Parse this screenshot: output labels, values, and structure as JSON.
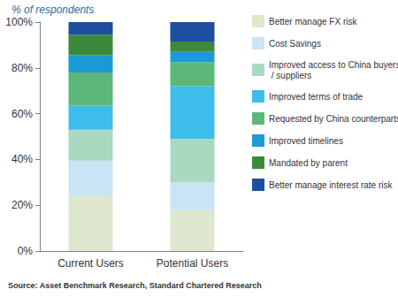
{
  "chart_data": {
    "type": "bar",
    "ylabel": "% of respondents",
    "annotations": [
      "Source: Asset Benchmark Research, Standard Chartered Research"
    ],
    "categories": [
      "Current Users",
      "Potential Users"
    ],
    "stacked": true,
    "grid": false,
    "legend": "right",
    "ylim": [
      0,
      100
    ],
    "yticks": [
      {
        "value": 0,
        "label": "0%"
      },
      {
        "value": 20,
        "label": "20%"
      },
      {
        "value": 40,
        "label": "40%"
      },
      {
        "value": 60,
        "label": "60%"
      },
      {
        "value": 80,
        "label": "80%"
      },
      {
        "value": 100,
        "label": "100%"
      }
    ],
    "series": [
      {
        "name": "Better manage FX risk",
        "color": "#dde8cf",
        "values": [
          24,
          18
        ]
      },
      {
        "name": "Cost Savings",
        "color": "#c9e4f4",
        "values": [
          15.5,
          12
        ]
      },
      {
        "name": "Improved access to China buyers / suppliers",
        "color": "#a9d9c1",
        "values": [
          13.5,
          19
        ]
      },
      {
        "name": "Improved terms of trade",
        "color": "#3dbde9",
        "values": [
          10.5,
          23
        ]
      },
      {
        "name": "Requested by China counterparts",
        "color": "#5cb87a",
        "values": [
          14.5,
          10.5
        ]
      },
      {
        "name": "Improved timelines",
        "color": "#1b9ad6",
        "values": [
          7.5,
          4.5
        ]
      },
      {
        "name": "Mandated by parent",
        "color": "#3b8a3b",
        "values": [
          9,
          4.5
        ]
      },
      {
        "name": "Better manage interest rate risk",
        "color": "#1c4fa0",
        "values": [
          5.5,
          8.5
        ]
      }
    ]
  }
}
